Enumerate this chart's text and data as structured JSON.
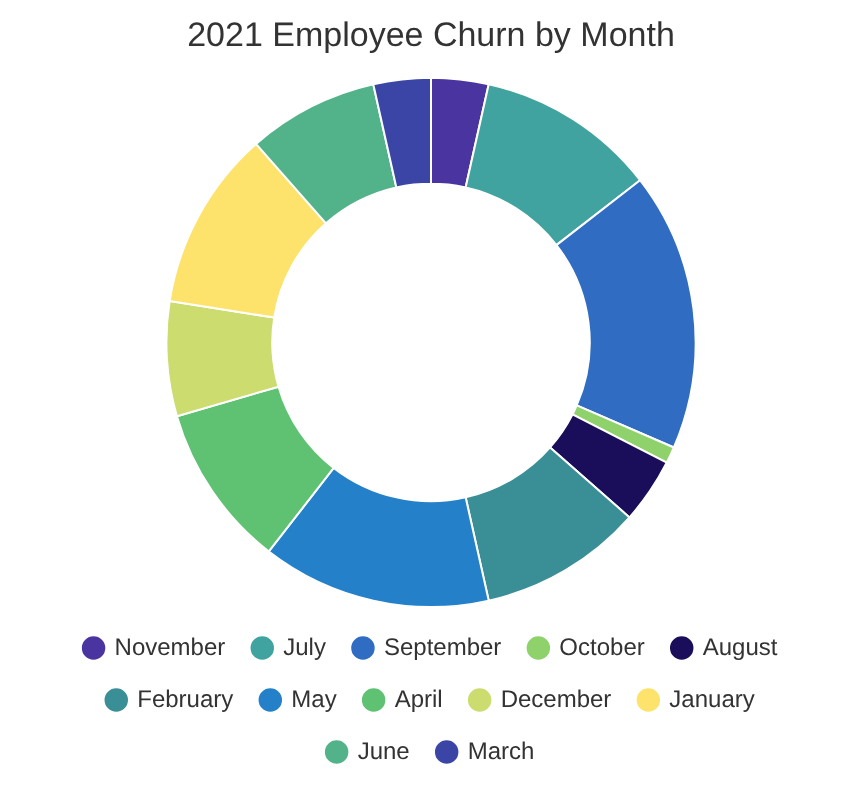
{
  "chart_data": {
    "type": "donut",
    "title": "2021 Employee Churn by Month",
    "categories": [
      "November",
      "July",
      "September",
      "October",
      "August",
      "February",
      "May",
      "April",
      "December",
      "January",
      "June",
      "March"
    ],
    "values": [
      3.5,
      11,
      17,
      1,
      4,
      10,
      14,
      10,
      7,
      11,
      8,
      3.5
    ],
    "colors": [
      "#4a35a0",
      "#41a39f",
      "#2f6cc2",
      "#8fd16b",
      "#1a0e5a",
      "#3a8f96",
      "#2480c8",
      "#5fc273",
      "#ccdc6e",
      "#fde36b",
      "#52b38a",
      "#3a45a5"
    ],
    "legend": "bottom"
  }
}
